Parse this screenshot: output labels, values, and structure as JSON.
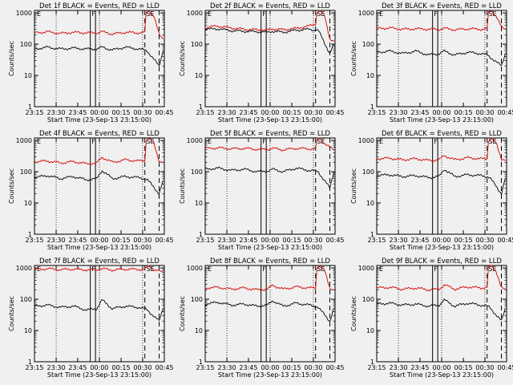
{
  "figure": {
    "background": "#f0f0f0",
    "event_color": "#000000",
    "lld_color": "#d40000",
    "xlabel": "Start Time (23-Sep-13 23:15:00)",
    "ylabel": "Counts/sec",
    "xticks": [
      "23:15",
      "23:30",
      "23:45",
      "00:00",
      "00:15",
      "00:30",
      "00:45"
    ],
    "yticks": [
      "1",
      "10",
      "100",
      "1000"
    ],
    "flag_labels": [
      "E",
      "F",
      "SE"
    ]
  },
  "chart_data": [
    {
      "type": "line",
      "title": "Det 1f BLACK = Events, RED = LLD",
      "xlabel": "Start Time (23-Sep-13 23:15:00)",
      "ylabel": "Counts/sec",
      "ylim": [
        1,
        1200
      ],
      "yscale": "log",
      "x_range_min": [
        0,
        100
      ],
      "xticks": [
        "23:15",
        "23:30",
        "23:45",
        "00:00",
        "00:15",
        "00:30",
        "00:45"
      ],
      "series": [
        {
          "name": "Events",
          "color": "#000000",
          "x": [
            0,
            10,
            20,
            30,
            40,
            48,
            52,
            60,
            70,
            80,
            85,
            87,
            96,
            99
          ],
          "values": [
            70,
            80,
            70,
            75,
            70,
            70,
            80,
            65,
            80,
            70,
            65,
            60,
            20,
            60
          ]
        },
        {
          "name": "LLD",
          "color": "#d40000",
          "x": [
            0,
            10,
            20,
            30,
            40,
            48,
            52,
            60,
            70,
            80,
            85,
            86,
            88,
            92,
            96,
            99
          ],
          "values": [
            230,
            250,
            220,
            240,
            230,
            230,
            250,
            210,
            240,
            230,
            240,
            1000,
            1200,
            800,
            200,
            150
          ]
        }
      ]
    },
    {
      "type": "line",
      "title": "Det 2f BLACK = Events, RED = LLD",
      "xlabel": "Start Time (23-Sep-13 23:15:00)",
      "ylabel": "Counts/sec",
      "ylim": [
        1,
        1200
      ],
      "yscale": "log",
      "x_range_min": [
        0,
        100
      ],
      "xticks": [
        "23:15",
        "23:30",
        "23:45",
        "00:00",
        "00:15",
        "00:30",
        "00:45"
      ],
      "series": [
        {
          "name": "Events",
          "color": "#000000",
          "x": [
            0,
            10,
            20,
            30,
            40,
            48,
            52,
            60,
            70,
            80,
            85,
            87,
            96,
            99
          ],
          "values": [
            300,
            310,
            270,
            260,
            250,
            240,
            260,
            240,
            280,
            300,
            280,
            280,
            50,
            100
          ]
        },
        {
          "name": "LLD",
          "color": "#d40000",
          "x": [
            0,
            10,
            20,
            30,
            40,
            48,
            52,
            60,
            70,
            80,
            85,
            86,
            88,
            92,
            96,
            99
          ],
          "values": [
            350,
            380,
            330,
            300,
            290,
            280,
            310,
            290,
            320,
            380,
            450,
            1000,
            1200,
            800,
            150,
            120
          ]
        }
      ]
    },
    {
      "type": "line",
      "title": "Det 3f BLACK = Events, RED = LLD",
      "xlabel": "Start Time (23-Sep-13 23:15:00)",
      "ylabel": "Counts/sec",
      "ylim": [
        1,
        1200
      ],
      "yscale": "log",
      "x_range_min": [
        0,
        100
      ],
      "xticks": [
        "23:15",
        "23:30",
        "23:45",
        "00:00",
        "00:15",
        "00:30",
        "00:45"
      ],
      "series": [
        {
          "name": "Events",
          "color": "#000000",
          "x": [
            0,
            10,
            20,
            30,
            40,
            48,
            52,
            60,
            70,
            80,
            85,
            87,
            96,
            99
          ],
          "values": [
            55,
            60,
            50,
            60,
            45,
            50,
            60,
            45,
            55,
            50,
            45,
            40,
            20,
            50
          ]
        },
        {
          "name": "LLD",
          "color": "#d40000",
          "x": [
            0,
            10,
            20,
            30,
            40,
            48,
            52,
            60,
            70,
            80,
            85,
            86,
            88,
            92,
            96,
            99
          ],
          "values": [
            320,
            330,
            300,
            310,
            300,
            300,
            320,
            290,
            310,
            300,
            310,
            1000,
            1200,
            800,
            350,
            300
          ]
        }
      ]
    },
    {
      "type": "line",
      "title": "Det 4f BLACK = Events, RED = LLD",
      "xlabel": "Start Time (23-Sep-13 23:15:00)",
      "ylabel": "Counts/sec",
      "ylim": [
        1,
        1200
      ],
      "yscale": "log",
      "x_range_min": [
        0,
        100
      ],
      "xticks": [
        "23:15",
        "23:30",
        "23:45",
        "00:00",
        "00:15",
        "00:30",
        "00:45"
      ],
      "series": [
        {
          "name": "Events",
          "color": "#000000",
          "x": [
            0,
            10,
            20,
            30,
            40,
            48,
            52,
            60,
            70,
            80,
            85,
            87,
            96,
            99
          ],
          "values": [
            65,
            75,
            60,
            70,
            55,
            60,
            110,
            60,
            70,
            65,
            60,
            55,
            20,
            50
          ]
        },
        {
          "name": "LLD",
          "color": "#d40000",
          "x": [
            0,
            10,
            20,
            30,
            40,
            48,
            52,
            60,
            70,
            80,
            85,
            86,
            88,
            92,
            96,
            99
          ],
          "values": [
            210,
            220,
            190,
            210,
            180,
            190,
            290,
            200,
            240,
            220,
            230,
            1000,
            1200,
            800,
            220,
            200
          ]
        }
      ]
    },
    {
      "type": "line",
      "title": "Det 5f BLACK = Events, RED = LLD",
      "xlabel": "Start Time (23-Sep-13 23:15:00)",
      "ylabel": "Counts/sec",
      "ylim": [
        1,
        1200
      ],
      "yscale": "log",
      "x_range_min": [
        0,
        100
      ],
      "xticks": [
        "23:15",
        "23:30",
        "23:45",
        "00:00",
        "00:15",
        "00:30",
        "00:45"
      ],
      "series": [
        {
          "name": "Events",
          "color": "#000000",
          "x": [
            0,
            10,
            20,
            30,
            40,
            48,
            52,
            60,
            70,
            80,
            85,
            87,
            96,
            99
          ],
          "values": [
            120,
            130,
            110,
            120,
            100,
            105,
            120,
            100,
            130,
            110,
            105,
            100,
            30,
            100
          ]
        },
        {
          "name": "LLD",
          "color": "#d40000",
          "x": [
            0,
            10,
            20,
            30,
            40,
            48,
            52,
            60,
            70,
            80,
            85,
            86,
            88,
            92,
            96,
            99
          ],
          "values": [
            550,
            580,
            540,
            560,
            520,
            520,
            560,
            500,
            560,
            540,
            540,
            1000,
            1200,
            800,
            600,
            500
          ]
        }
      ]
    },
    {
      "type": "line",
      "title": "Det 6f BLACK = Events, RED = LLD",
      "xlabel": "Start Time (23-Sep-13 23:15:00)",
      "ylabel": "Counts/sec",
      "ylim": [
        1,
        1200
      ],
      "yscale": "log",
      "x_range_min": [
        0,
        100
      ],
      "xticks": [
        "23:15",
        "23:30",
        "23:45",
        "00:00",
        "00:15",
        "00:30",
        "00:45"
      ],
      "series": [
        {
          "name": "Events",
          "color": "#000000",
          "x": [
            0,
            10,
            20,
            30,
            40,
            48,
            52,
            60,
            70,
            80,
            85,
            87,
            96,
            99
          ],
          "values": [
            75,
            80,
            70,
            75,
            65,
            70,
            120,
            70,
            80,
            75,
            70,
            65,
            20,
            60
          ]
        },
        {
          "name": "LLD",
          "color": "#d40000",
          "x": [
            0,
            10,
            20,
            30,
            40,
            48,
            52,
            60,
            70,
            80,
            85,
            86,
            88,
            92,
            96,
            99
          ],
          "values": [
            260,
            270,
            240,
            260,
            230,
            240,
            330,
            240,
            280,
            260,
            260,
            1000,
            1200,
            800,
            260,
            240
          ]
        }
      ]
    },
    {
      "type": "line",
      "title": "Det 7f BLACK = Events, RED = LLD",
      "xlabel": "Start Time (23-Sep-13 23:15:00)",
      "ylabel": "Counts/sec",
      "ylim": [
        1,
        1200
      ],
      "yscale": "log",
      "x_range_min": [
        0,
        100
      ],
      "xticks": [
        "23:15",
        "23:30",
        "23:45",
        "00:00",
        "00:15",
        "00:30",
        "00:45"
      ],
      "series": [
        {
          "name": "Events",
          "color": "#000000",
          "x": [
            0,
            10,
            20,
            30,
            40,
            48,
            52,
            60,
            70,
            80,
            85,
            87,
            96,
            99
          ],
          "values": [
            60,
            65,
            55,
            60,
            45,
            50,
            95,
            50,
            60,
            55,
            50,
            45,
            20,
            50
          ]
        },
        {
          "name": "LLD",
          "color": "#d40000",
          "x": [
            0,
            10,
            20,
            30,
            40,
            48,
            52,
            60,
            70,
            80,
            85,
            86,
            88,
            92,
            96,
            99
          ],
          "values": [
            900,
            950,
            880,
            920,
            870,
            880,
            950,
            860,
            920,
            900,
            900,
            1000,
            1200,
            900,
            800,
            700
          ]
        }
      ]
    },
    {
      "type": "line",
      "title": "Det 8f BLACK = Events, RED = LLD",
      "xlabel": "Start Time (23-Sep-13 23:15:00)",
      "ylabel": "Counts/sec",
      "ylim": [
        1,
        1200
      ],
      "yscale": "log",
      "x_range_min": [
        0,
        100
      ],
      "xticks": [
        "23:15",
        "23:30",
        "23:45",
        "00:00",
        "00:15",
        "00:30",
        "00:45"
      ],
      "series": [
        {
          "name": "Events",
          "color": "#000000",
          "x": [
            0,
            10,
            20,
            30,
            40,
            48,
            52,
            60,
            70,
            80,
            85,
            87,
            96,
            99
          ],
          "values": [
            70,
            80,
            65,
            70,
            60,
            65,
            90,
            60,
            75,
            65,
            60,
            55,
            20,
            50
          ]
        },
        {
          "name": "LLD",
          "color": "#d40000",
          "x": [
            0,
            10,
            20,
            30,
            40,
            48,
            52,
            60,
            70,
            80,
            85,
            86,
            88,
            92,
            96,
            99
          ],
          "values": [
            230,
            240,
            210,
            230,
            200,
            210,
            280,
            210,
            250,
            230,
            230,
            1000,
            1200,
            800,
            230,
            200
          ]
        }
      ]
    },
    {
      "type": "line",
      "title": "Det 9f BLACK = Events, RED = LLD",
      "xlabel": "Start Time (23-Sep-13 23:15:00)",
      "ylabel": "Counts/sec",
      "ylim": [
        1,
        1200
      ],
      "yscale": "log",
      "x_range_min": [
        0,
        100
      ],
      "xticks": [
        "23:15",
        "23:30",
        "23:45",
        "00:00",
        "00:15",
        "00:30",
        "00:45"
      ],
      "series": [
        {
          "name": "Events",
          "color": "#000000",
          "x": [
            0,
            10,
            20,
            30,
            40,
            48,
            52,
            60,
            70,
            80,
            85,
            87,
            96,
            99
          ],
          "values": [
            70,
            75,
            65,
            70,
            60,
            65,
            95,
            60,
            75,
            65,
            60,
            55,
            20,
            50
          ]
        },
        {
          "name": "LLD",
          "color": "#d40000",
          "x": [
            0,
            10,
            20,
            30,
            40,
            48,
            52,
            60,
            70,
            80,
            85,
            86,
            88,
            92,
            96,
            99
          ],
          "values": [
            230,
            240,
            210,
            230,
            200,
            210,
            290,
            210,
            250,
            230,
            240,
            1000,
            1200,
            800,
            230,
            200
          ]
        }
      ]
    }
  ]
}
